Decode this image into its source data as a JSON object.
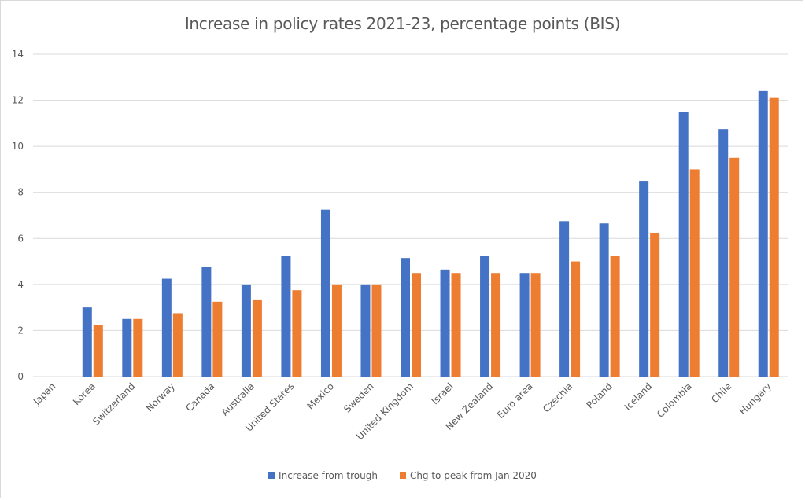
{
  "chart_data": {
    "type": "bar",
    "title": "Increase in policy rates 2021-23, percentage points (BIS)",
    "xlabel": "",
    "ylabel": "",
    "ylim": [
      0,
      14
    ],
    "yticks": [
      0,
      2,
      4,
      6,
      8,
      10,
      12,
      14
    ],
    "grid": true,
    "legend_position": "bottom",
    "categories": [
      "Japan",
      "Korea",
      "Switzerland",
      "Norway",
      "Canada",
      "Australia",
      "United States",
      "Mexico",
      "Sweden",
      "United Kingdom",
      "Israel",
      "New Zealand",
      "Euro area",
      "Czechia",
      "Poland",
      "Iceland",
      "Colombia",
      "Chile",
      "Hungary"
    ],
    "series": [
      {
        "name": "Increase from trough",
        "color": "#4472c4",
        "values": [
          0,
          3.0,
          2.5,
          4.25,
          4.75,
          4.0,
          5.25,
          7.25,
          4.0,
          5.15,
          4.65,
          5.25,
          4.5,
          6.75,
          6.65,
          8.5,
          11.5,
          10.75,
          12.4
        ]
      },
      {
        "name": "Chg to peak from Jan 2020",
        "color": "#ed7d31",
        "values": [
          0,
          2.25,
          2.5,
          2.75,
          3.25,
          3.35,
          3.75,
          4.0,
          4.0,
          4.5,
          4.5,
          4.5,
          4.5,
          5.0,
          5.25,
          6.25,
          9.0,
          9.5,
          12.1
        ]
      }
    ]
  }
}
